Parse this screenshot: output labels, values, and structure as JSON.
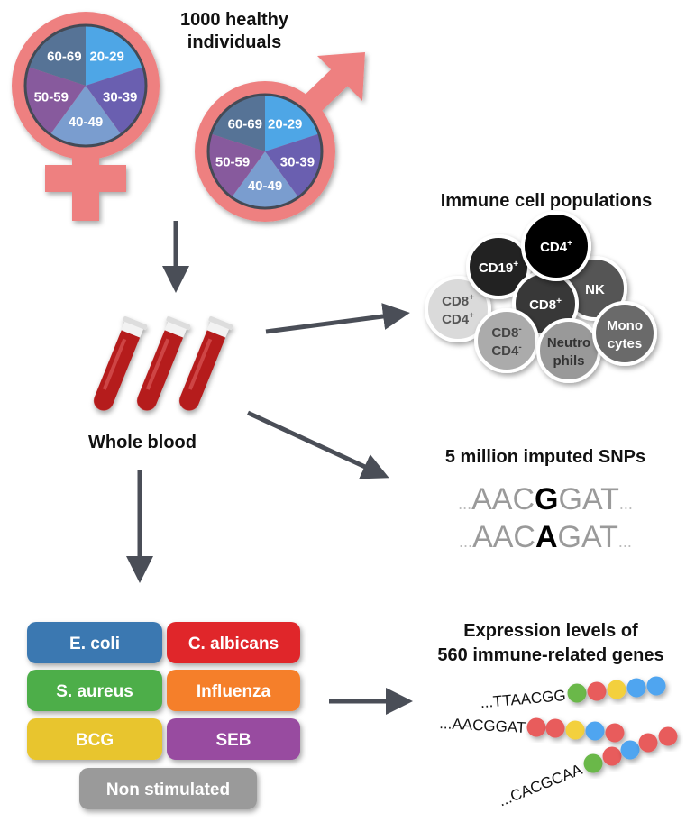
{
  "cohort": {
    "title_line1": "1000 healthy",
    "title_line2": "individuals",
    "female_icon": "female-symbol",
    "male_icon": "male-symbol",
    "symbol_color": "#ee8080",
    "age_groups": [
      {
        "label": "20-29",
        "color": "#4ea6e6"
      },
      {
        "label": "30-39",
        "color": "#6a5fb0"
      },
      {
        "label": "40-49",
        "color": "#7a9dcf"
      },
      {
        "label": "50-59",
        "color": "#875a9d"
      },
      {
        "label": "60-69",
        "color": "#567396"
      }
    ]
  },
  "blood": {
    "label": "Whole blood",
    "tube_color": "#b51d1d"
  },
  "arrow_color": "#4a4e57",
  "immune_cells": {
    "title": "Immune cell populations",
    "cells": [
      {
        "name": "CD8",
        "sup": "+",
        "name2": "CD4",
        "sup2": "+",
        "color": "#dadada",
        "text_color": "#555555"
      },
      {
        "name": "CD19",
        "sup": "+",
        "color": "#222222",
        "text_color": "#ffffff"
      },
      {
        "name": "NK",
        "color": "#555555",
        "text_color": "#ffffff"
      },
      {
        "name": "CD8",
        "sup": "+",
        "color": "#393939",
        "text_color": "#ffffff"
      },
      {
        "name": "CD4",
        "sup": "+",
        "color": "#000000",
        "text_color": "#ffffff"
      },
      {
        "name": "CD8",
        "sup": "-",
        "name2": "CD4",
        "sup2": "-",
        "color": "#ababab",
        "text_color": "#444444"
      },
      {
        "name": "Neutro",
        "name2": "phils",
        "color": "#999999",
        "text_color": "#333333"
      },
      {
        "name": "Mono",
        "name2": "cytes",
        "color": "#6a6a6a",
        "text_color": "#ffffff"
      }
    ]
  },
  "snps": {
    "title": "5 million imputed SNPs",
    "sequences": [
      {
        "prefix": "...",
        "left": "AAC",
        "variant": "G",
        "right": "GAT",
        "suffix": "..."
      },
      {
        "prefix": "...",
        "left": "AAC",
        "variant": "A",
        "right": "GAT",
        "suffix": "..."
      }
    ]
  },
  "stimuli": [
    {
      "label": "E. coli",
      "color": "#3a78b1"
    },
    {
      "label": "C. albicans",
      "color": "#e0272c"
    },
    {
      "label": "S. aureus",
      "color": "#4dae4a"
    },
    {
      "label": "Influenza",
      "color": "#f57f2a"
    },
    {
      "label": "BCG",
      "color": "#e8c52d"
    },
    {
      "label": "SEB",
      "color": "#984ca0"
    },
    {
      "label": "Non stimulated",
      "color": "#9a9a9a"
    }
  ],
  "expression": {
    "title_line1": "Expression levels of",
    "title_line2": "560 immune-related genes",
    "sequences": [
      "...TTAACGG",
      "...AACGGAT",
      "...CACGCAA"
    ],
    "bead_colors": {
      "green": "#6ab84a",
      "red": "#e85c5c",
      "yellow": "#f3d03c",
      "blue": "#4fa5f0"
    },
    "beads": [
      [
        "green",
        "red",
        "yellow",
        "blue",
        "blue"
      ],
      [
        "red",
        "red",
        "yellow",
        "blue",
        "red"
      ],
      [
        "green",
        "red",
        "blue",
        "red",
        "red"
      ]
    ]
  }
}
